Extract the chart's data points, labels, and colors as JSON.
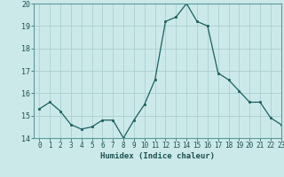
{
  "x": [
    0,
    1,
    2,
    3,
    4,
    5,
    6,
    7,
    8,
    9,
    10,
    11,
    12,
    13,
    14,
    15,
    16,
    17,
    18,
    19,
    20,
    21,
    22,
    23
  ],
  "y": [
    15.3,
    15.6,
    15.2,
    14.6,
    14.4,
    14.5,
    14.8,
    14.8,
    14.0,
    14.8,
    15.5,
    16.6,
    19.2,
    19.4,
    20.0,
    19.2,
    19.0,
    16.9,
    16.6,
    16.1,
    15.6,
    15.6,
    14.9,
    14.6
  ],
  "xlabel": "Humidex (Indice chaleur)",
  "bg_color": "#cce9e9",
  "grid_color": "#aacfcf",
  "line_color": "#1a6060",
  "marker_color": "#1a6060",
  "ylim": [
    14,
    20
  ],
  "xlim": [
    -0.5,
    23
  ],
  "yticks": [
    14,
    15,
    16,
    17,
    18,
    19,
    20
  ],
  "xticks": [
    0,
    1,
    2,
    3,
    4,
    5,
    6,
    7,
    8,
    9,
    10,
    11,
    12,
    13,
    14,
    15,
    16,
    17,
    18,
    19,
    20,
    21,
    22,
    23
  ],
  "xtick_labels": [
    "0",
    "1",
    "2",
    "3",
    "4",
    "5",
    "6",
    "7",
    "8",
    "9",
    "10",
    "11",
    "12",
    "13",
    "14",
    "15",
    "16",
    "17",
    "18",
    "19",
    "20",
    "21",
    "22",
    "23"
  ]
}
